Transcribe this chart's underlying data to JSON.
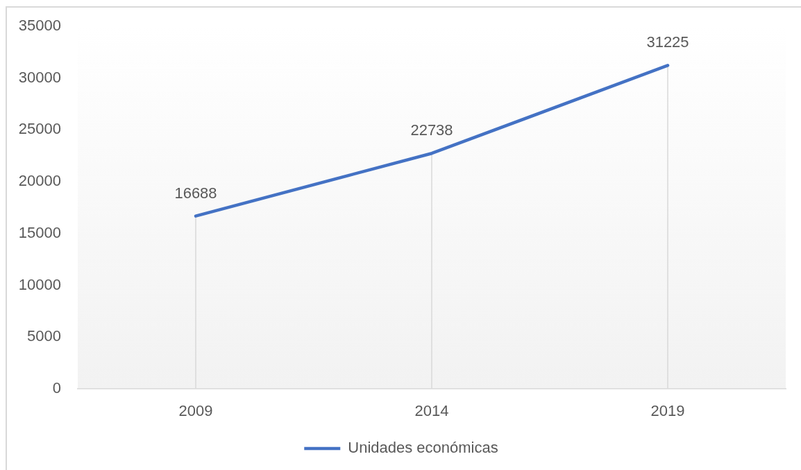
{
  "chart_data": {
    "type": "line",
    "categories": [
      "2009",
      "2014",
      "2019"
    ],
    "series": [
      {
        "name": "Unidades económicas",
        "color": "#4472c4",
        "values": [
          16688,
          22738,
          31225
        ]
      }
    ],
    "ylim": [
      0,
      35000
    ],
    "yticks": [
      0,
      5000,
      10000,
      15000,
      20000,
      25000,
      30000,
      35000
    ],
    "data_labels": true,
    "legend": "bottom",
    "marker": "none"
  }
}
